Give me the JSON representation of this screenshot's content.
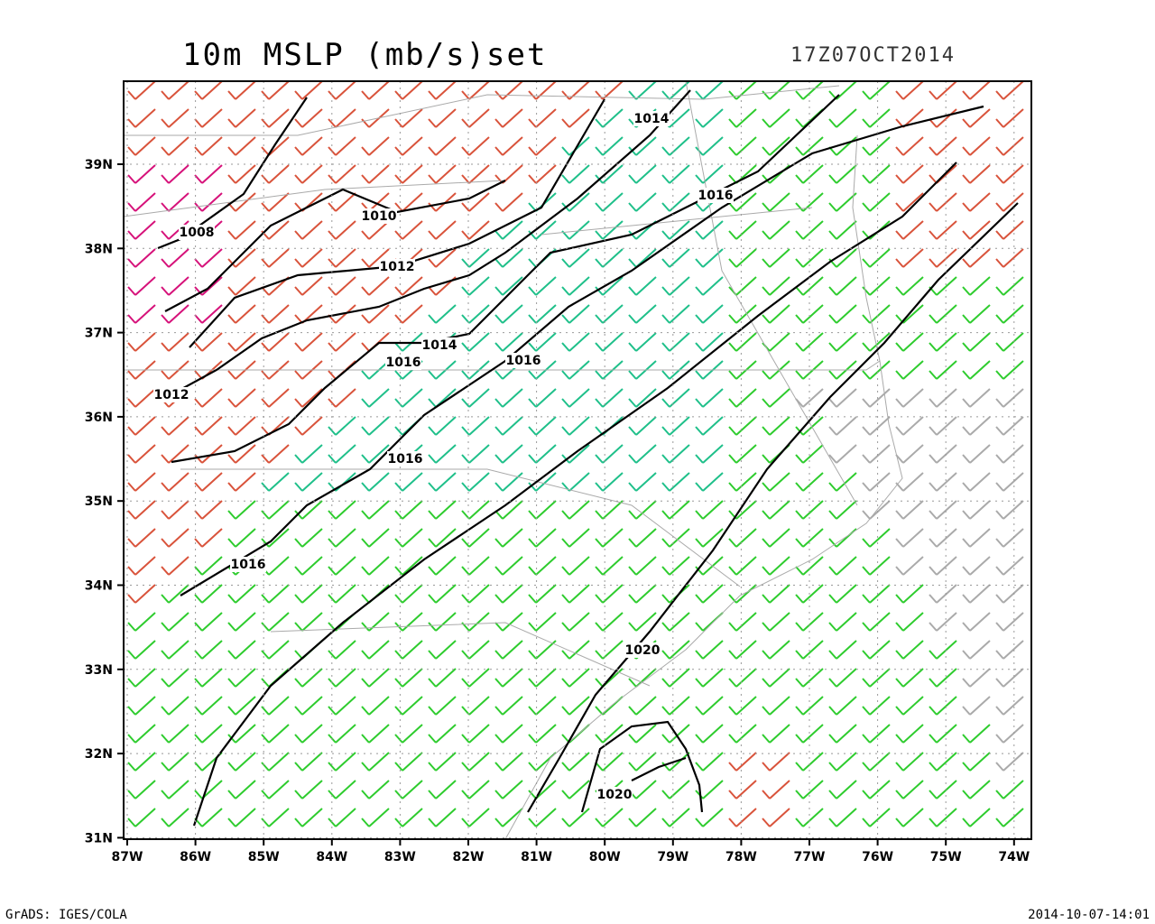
{
  "header": {
    "title": "10m MSLP (mb/s)set",
    "valid_time": "17Z07OCT2014"
  },
  "map": {
    "lat_labels": [
      "39N",
      "38N",
      "37N",
      "36N",
      "35N",
      "34N",
      "33N",
      "32N",
      "31N"
    ],
    "lon_labels": [
      "87W",
      "86W",
      "85W",
      "84W",
      "83W",
      "82W",
      "81W",
      "80W",
      "79W",
      "78W",
      "77W",
      "76W",
      "75W",
      "74W"
    ],
    "contour_labels": [
      "1008",
      "1010",
      "1012",
      "1014",
      "1016",
      "1014",
      "1016",
      "1016",
      "1012",
      "1016",
      "1016",
      "1020",
      "1020"
    ]
  },
  "footer": {
    "left": "GrADS: IGES/COLA",
    "right": "2014-10-07-14:01"
  }
}
